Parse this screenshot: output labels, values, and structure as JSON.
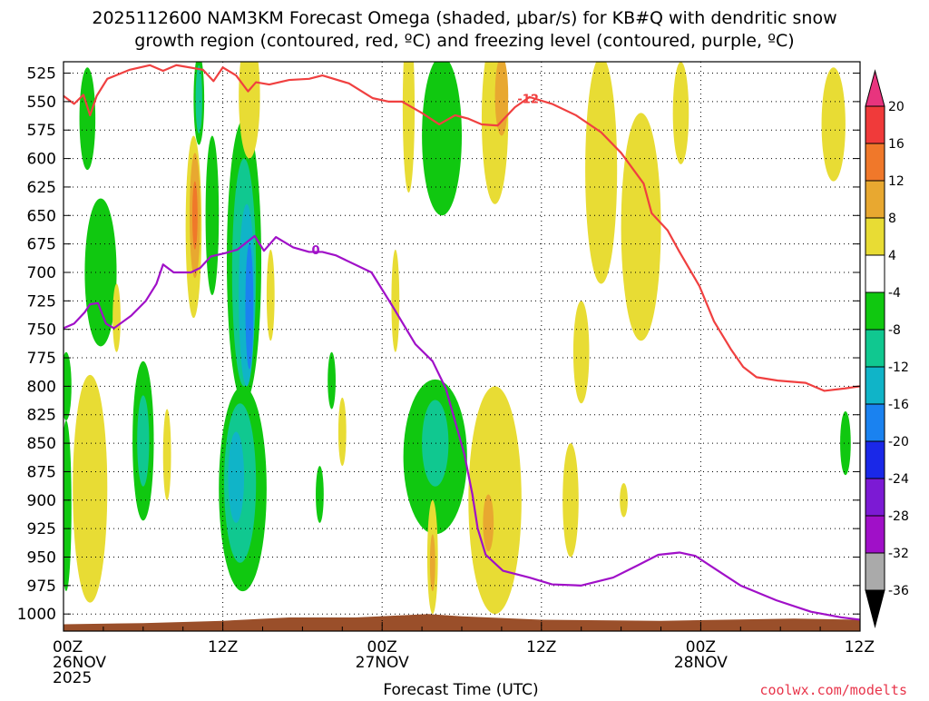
{
  "title": {
    "line1": "2025112600 NAM3KM Forecast Omega (shaded, μbar/s) for KB#Q with dendritic snow",
    "line2": "growth region (contoured, red, ºC) and freezing level (contoured, purple, ºC)"
  },
  "credit": "coolwx.com/modelts",
  "chart_data": {
    "type": "heatmap",
    "title": "2025112600 NAM3KM Forecast Omega (shaded, μbar/s) for KB#Q with dendritic snow growth region (contoured, red, ºC) and freezing level (contoured, purple, ºC)",
    "xlabel": "Forecast Time (UTC)",
    "ylabel": "",
    "x_unit": "forecast hour",
    "xlim": [
      0,
      60
    ],
    "ylim": [
      1015,
      515
    ],
    "y_ticks": [
      525,
      550,
      575,
      600,
      625,
      650,
      675,
      700,
      725,
      750,
      775,
      800,
      825,
      850,
      875,
      900,
      925,
      950,
      975,
      1000
    ],
    "x_ticks": [
      {
        "hour": 0,
        "lines": [
          "00Z",
          "26NOV",
          "2025"
        ]
      },
      {
        "hour": 12,
        "lines": [
          "12Z"
        ]
      },
      {
        "hour": 24,
        "lines": [
          "00Z",
          "27NOV"
        ]
      },
      {
        "hour": 36,
        "lines": [
          "12Z"
        ]
      },
      {
        "hour": 48,
        "lines": [
          "00Z",
          "28NOV"
        ]
      },
      {
        "hour": 60,
        "lines": [
          "12Z"
        ]
      }
    ],
    "grid": true,
    "colorbar": {
      "labels": [
        "20",
        "16",
        "12",
        "8",
        "4",
        "-4",
        "-8",
        "-12",
        "-16",
        "-20",
        "-24",
        "-28",
        "-32",
        "-36"
      ],
      "bins": [
        {
          "range": "above 20",
          "color": "#e8347e",
          "triangle": "top"
        },
        {
          "range": "16 to 20",
          "color": "#f03a3a"
        },
        {
          "range": "12 to 16",
          "color": "#f0782a"
        },
        {
          "range": "8 to 12",
          "color": "#e8a830"
        },
        {
          "range": "4 to 8",
          "color": "#e8dc34"
        },
        {
          "range": "-4 to 4",
          "color": "#ffffff"
        },
        {
          "range": "-8 to -4",
          "color": "#10c810"
        },
        {
          "range": "-12 to -8",
          "color": "#10c890"
        },
        {
          "range": "-16 to -12",
          "color": "#10b4c8"
        },
        {
          "range": "-20 to -16",
          "color": "#1a82f0"
        },
        {
          "range": "-24 to -20",
          "color": "#1a28e8"
        },
        {
          "range": "-28 to -24",
          "color": "#7c1ad4"
        },
        {
          "range": "-32 to -28",
          "color": "#a010c8"
        },
        {
          "range": "-36 to -32",
          "color": "#aaaaaa"
        },
        {
          "range": "below -36",
          "color": "#000000",
          "triangle": "bottom"
        }
      ]
    },
    "contours": [
      {
        "name": "-12",
        "color": "#f04040",
        "points": [
          [
            0,
            545
          ],
          [
            0.8,
            552
          ],
          [
            1.5,
            544
          ],
          [
            2.0,
            562
          ],
          [
            2.5,
            545
          ],
          [
            3.3,
            530
          ],
          [
            5,
            522
          ],
          [
            6.5,
            518
          ],
          [
            7.5,
            523
          ],
          [
            8.5,
            518
          ],
          [
            10.5,
            522
          ],
          [
            11.3,
            532
          ],
          [
            12,
            520
          ],
          [
            13,
            527
          ],
          [
            13.9,
            541
          ],
          [
            14.5,
            533
          ],
          [
            15.5,
            535
          ],
          [
            17,
            531
          ],
          [
            18.5,
            530
          ],
          [
            19.5,
            527
          ],
          [
            21.5,
            534
          ],
          [
            23.3,
            547
          ],
          [
            24.5,
            550
          ],
          [
            25.5,
            550
          ],
          [
            27,
            560
          ],
          [
            28.3,
            570
          ],
          [
            29.5,
            562
          ],
          [
            30.5,
            565
          ],
          [
            31.5,
            570
          ],
          [
            32.7,
            571
          ],
          [
            34,
            555
          ],
          [
            35.1,
            546
          ],
          [
            36.8,
            552
          ],
          [
            38.6,
            562
          ],
          [
            40.5,
            577
          ],
          [
            42,
            595
          ],
          [
            43.7,
            622
          ],
          [
            44.3,
            648
          ],
          [
            45.5,
            663
          ],
          [
            46.4,
            682
          ],
          [
            47.9,
            712
          ],
          [
            49,
            743
          ],
          [
            50.3,
            768
          ],
          [
            51.2,
            783
          ],
          [
            52.2,
            792
          ],
          [
            53.8,
            795
          ],
          [
            55.9,
            797
          ],
          [
            57.3,
            804
          ],
          [
            58.8,
            802
          ],
          [
            60,
            800
          ]
        ]
      },
      {
        "name": "0",
        "color": "#a010c8",
        "points": [
          [
            0,
            749
          ],
          [
            0.8,
            745
          ],
          [
            1.6,
            735
          ],
          [
            2.0,
            728
          ],
          [
            2.6,
            727
          ],
          [
            3.2,
            745
          ],
          [
            3.8,
            749
          ],
          [
            5.1,
            738
          ],
          [
            6.2,
            725
          ],
          [
            7.0,
            710
          ],
          [
            7.5,
            693
          ],
          [
            8.3,
            700
          ],
          [
            9.6,
            700
          ],
          [
            10.3,
            696
          ],
          [
            11.1,
            686
          ],
          [
            12.2,
            683
          ],
          [
            13.1,
            680
          ],
          [
            14.4,
            668
          ],
          [
            15.1,
            681
          ],
          [
            16,
            669
          ],
          [
            17.3,
            678
          ],
          [
            18.5,
            682
          ],
          [
            19.5,
            682
          ],
          [
            20.5,
            685
          ],
          [
            23.2,
            700
          ],
          [
            24.8,
            730
          ],
          [
            26.5,
            763
          ],
          [
            27.8,
            778
          ],
          [
            28.8,
            802
          ],
          [
            30.2,
            860
          ],
          [
            30.8,
            895
          ],
          [
            31.2,
            925
          ],
          [
            31.8,
            948
          ],
          [
            33.1,
            962
          ],
          [
            35.1,
            968
          ],
          [
            36.8,
            974
          ],
          [
            39,
            975
          ],
          [
            41.4,
            968
          ],
          [
            43.3,
            957
          ],
          [
            44.8,
            948
          ],
          [
            46.4,
            946
          ],
          [
            47.6,
            949
          ],
          [
            49.3,
            962
          ],
          [
            51,
            975
          ],
          [
            53.7,
            988
          ],
          [
            56.3,
            998
          ],
          [
            58.6,
            1003
          ],
          [
            60,
            1005
          ]
        ]
      }
    ],
    "contour_labels": [
      {
        "text": "-12",
        "color": "#f04040",
        "hour": 35.0,
        "pressure": 548
      },
      {
        "text": "0",
        "color": "#a010c8",
        "hour": 19.0,
        "pressure": 681
      }
    ],
    "terrain": {
      "color": "#9a4f2a",
      "points": [
        [
          0,
          1009
        ],
        [
          6,
          1008
        ],
        [
          12,
          1006
        ],
        [
          17,
          1003
        ],
        [
          22,
          1003
        ],
        [
          27.5,
          1000
        ],
        [
          30,
          1002
        ],
        [
          36,
          1005
        ],
        [
          45,
          1006
        ],
        [
          55,
          1004
        ],
        [
          60,
          1005
        ]
      ]
    },
    "omega_regions": [
      {
        "bin": "-8 to -4",
        "hour": 1.8,
        "pressure": 565,
        "hw": 0.6,
        "hh": 45
      },
      {
        "bin": "-8 to -4",
        "hour": 2.8,
        "pressure": 700,
        "hw": 1.2,
        "hh": 65
      },
      {
        "bin": "-8 to -4",
        "hour": 0.2,
        "pressure": 800,
        "hw": 0.4,
        "hh": 30
      },
      {
        "bin": "-8 to -4",
        "hour": 0.2,
        "pressure": 905,
        "hw": 0.4,
        "hh": 75
      },
      {
        "bin": "-8 to -4",
        "hour": 6.0,
        "pressure": 848,
        "hw": 0.8,
        "hh": 70
      },
      {
        "bin": "-12 to -8",
        "hour": 6.0,
        "pressure": 848,
        "hw": 0.45,
        "hh": 40
      },
      {
        "bin": "-8 to -4",
        "hour": 10.2,
        "pressure": 548,
        "hw": 0.4,
        "hh": 40
      },
      {
        "bin": "-12 to -8",
        "hour": 10.2,
        "pressure": 548,
        "hw": 0.25,
        "hh": 30
      },
      {
        "bin": "-8 to -4",
        "hour": 11.2,
        "pressure": 650,
        "hw": 0.5,
        "hh": 70
      },
      {
        "bin": "-8 to -4",
        "hour": 13.6,
        "pressure": 690,
        "hw": 1.3,
        "hh": 125
      },
      {
        "bin": "-12 to -8",
        "hour": 13.6,
        "pressure": 700,
        "hw": 0.9,
        "hh": 100
      },
      {
        "bin": "-16 to -12",
        "hour": 13.8,
        "pressure": 720,
        "hw": 0.6,
        "hh": 80
      },
      {
        "bin": "-20 to -16",
        "hour": 14.0,
        "pressure": 730,
        "hw": 0.3,
        "hh": 55
      },
      {
        "bin": "-8 to -4",
        "hour": 13.5,
        "pressure": 890,
        "hw": 1.8,
        "hh": 90
      },
      {
        "bin": "-12 to -8",
        "hour": 13.3,
        "pressure": 885,
        "hw": 1.2,
        "hh": 70
      },
      {
        "bin": "-16 to -12",
        "hour": 13.0,
        "pressure": 880,
        "hw": 0.6,
        "hh": 40
      },
      {
        "bin": "-8 to -4",
        "hour": 19.3,
        "pressure": 895,
        "hw": 0.3,
        "hh": 25
      },
      {
        "bin": "-8 to -4",
        "hour": 20.2,
        "pressure": 795,
        "hw": 0.3,
        "hh": 25
      },
      {
        "bin": "-8 to -4",
        "hour": 28.5,
        "pressure": 580,
        "hw": 1.5,
        "hh": 70
      },
      {
        "bin": "-8 to -4",
        "hour": 28.0,
        "pressure": 862,
        "hw": 2.4,
        "hh": 68
      },
      {
        "bin": "-12 to -8",
        "hour": 28.0,
        "pressure": 850,
        "hw": 1.0,
        "hh": 38
      },
      {
        "bin": "-8 to -4",
        "hour": 58.9,
        "pressure": 850,
        "hw": 0.4,
        "hh": 28
      },
      {
        "bin": "4 to 8",
        "hour": 2.0,
        "pressure": 890,
        "hw": 1.3,
        "hh": 100
      },
      {
        "bin": "4 to 8",
        "hour": 4.0,
        "pressure": 740,
        "hw": 0.3,
        "hh": 30
      },
      {
        "bin": "4 to 8",
        "hour": 7.8,
        "pressure": 860,
        "hw": 0.3,
        "hh": 40
      },
      {
        "bin": "4 to 8",
        "hour": 9.8,
        "pressure": 660,
        "hw": 0.6,
        "hh": 80
      },
      {
        "bin": "8 to 12",
        "hour": 9.9,
        "pressure": 650,
        "hw": 0.4,
        "hh": 55
      },
      {
        "bin": "12 to 16",
        "hour": 9.9,
        "pressure": 650,
        "hw": 0.2,
        "hh": 30
      },
      {
        "bin": "4 to 8",
        "hour": 14.0,
        "pressure": 545,
        "hw": 0.8,
        "hh": 55
      },
      {
        "bin": "4 to 8",
        "hour": 15.6,
        "pressure": 720,
        "hw": 0.3,
        "hh": 40
      },
      {
        "bin": "4 to 8",
        "hour": 21.0,
        "pressure": 840,
        "hw": 0.3,
        "hh": 30
      },
      {
        "bin": "4 to 8",
        "hour": 26.0,
        "pressure": 555,
        "hw": 0.45,
        "hh": 75
      },
      {
        "bin": "4 to 8",
        "hour": 25.0,
        "pressure": 725,
        "hw": 0.3,
        "hh": 45
      },
      {
        "bin": "4 to 8",
        "hour": 32.5,
        "pressure": 565,
        "hw": 1.0,
        "hh": 75
      },
      {
        "bin": "8 to 12",
        "hour": 33.0,
        "pressure": 545,
        "hw": 0.5,
        "hh": 35
      },
      {
        "bin": "4 to 8",
        "hour": 32.5,
        "pressure": 900,
        "hw": 2.0,
        "hh": 100
      },
      {
        "bin": "8 to 12",
        "hour": 32.0,
        "pressure": 920,
        "hw": 0.4,
        "hh": 25
      },
      {
        "bin": "4 to 8",
        "hour": 27.8,
        "pressure": 950,
        "hw": 0.4,
        "hh": 50
      },
      {
        "bin": "8 to 12",
        "hour": 27.8,
        "pressure": 955,
        "hw": 0.2,
        "hh": 25
      },
      {
        "bin": "4 to 8",
        "hour": 38.2,
        "pressure": 900,
        "hw": 0.6,
        "hh": 50
      },
      {
        "bin": "4 to 8",
        "hour": 42.2,
        "pressure": 900,
        "hw": 0.3,
        "hh": 15
      },
      {
        "bin": "4 to 8",
        "hour": 40.5,
        "pressure": 610,
        "hw": 1.2,
        "hh": 100
      },
      {
        "bin": "4 to 8",
        "hour": 43.5,
        "pressure": 660,
        "hw": 1.5,
        "hh": 100
      },
      {
        "bin": "4 to 8",
        "hour": 39.0,
        "pressure": 770,
        "hw": 0.6,
        "hh": 45
      },
      {
        "bin": "4 to 8",
        "hour": 46.5,
        "pressure": 560,
        "hw": 0.6,
        "hh": 45
      },
      {
        "bin": "4 to 8",
        "hour": 58.0,
        "pressure": 570,
        "hw": 0.9,
        "hh": 50
      }
    ]
  }
}
